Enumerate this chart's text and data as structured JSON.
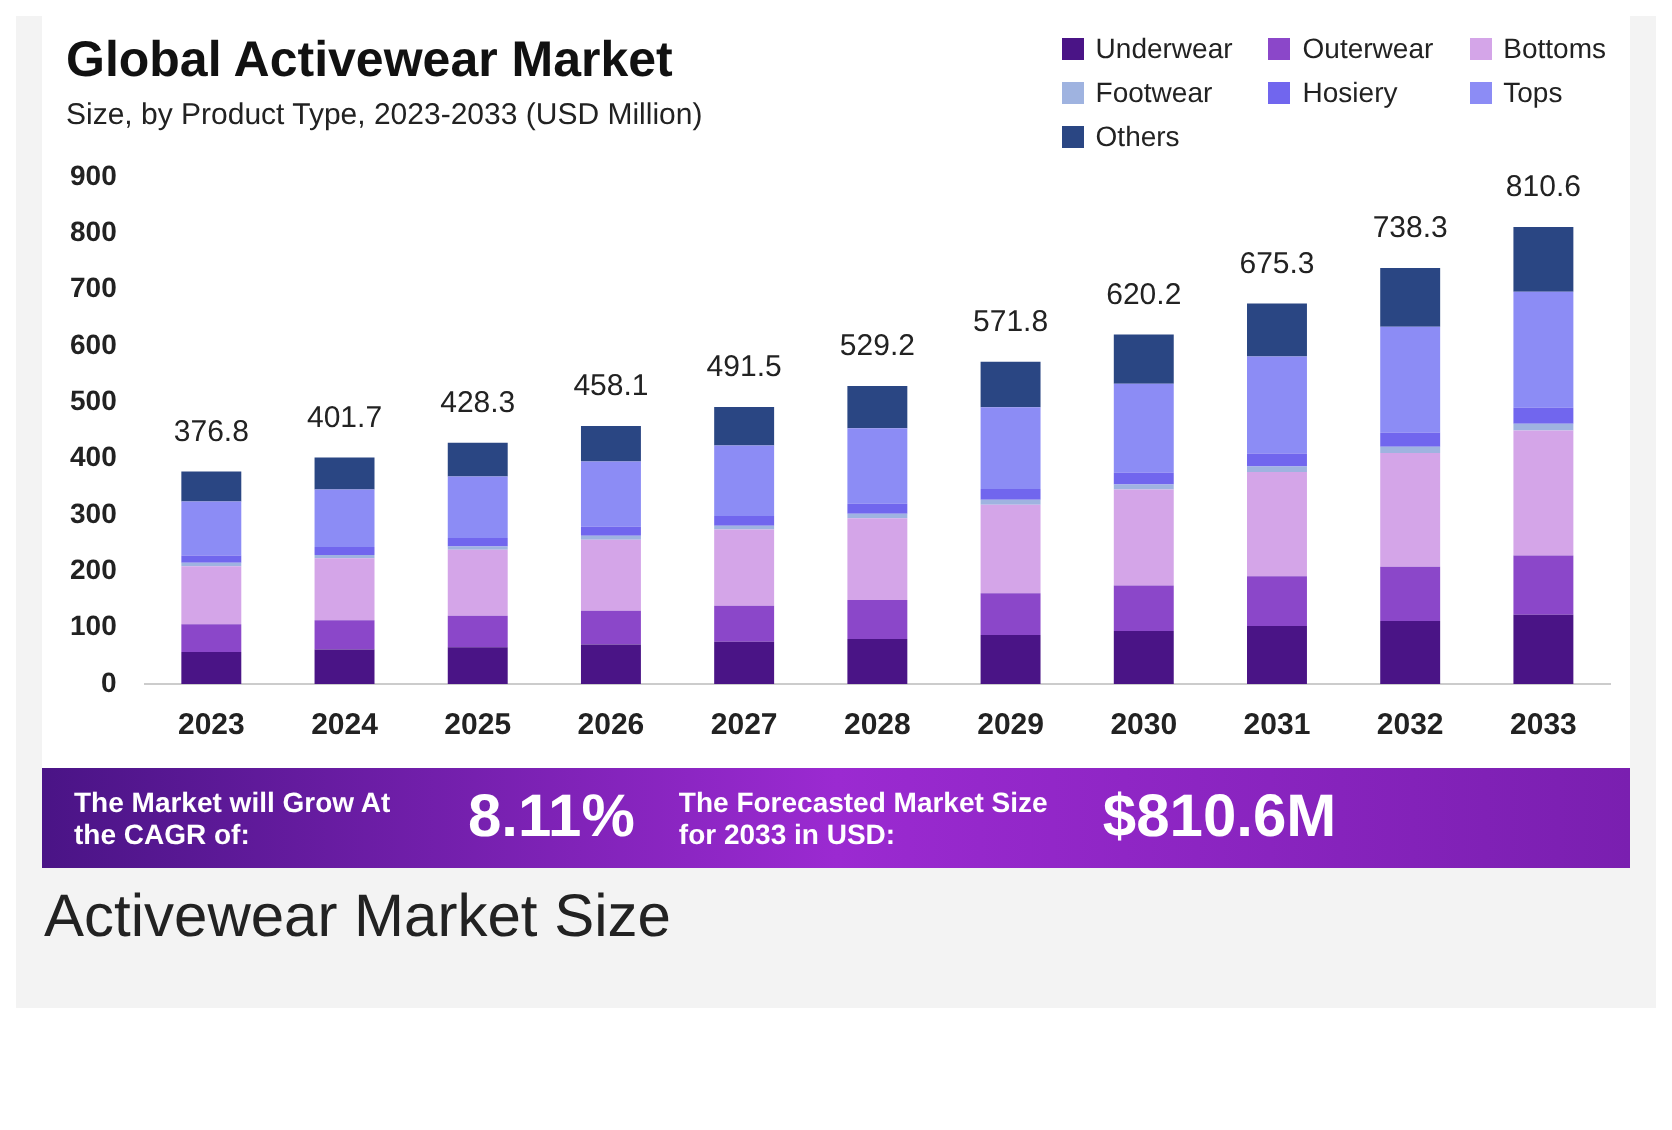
{
  "chart_data": {
    "type": "bar",
    "title": "Global Activewear Market",
    "subtitle": "Size, by Product Type, 2023-2033 (USD Million)",
    "categories": [
      "2023",
      "2024",
      "2025",
      "2026",
      "2027",
      "2028",
      "2029",
      "2030",
      "2031",
      "2032",
      "2033"
    ],
    "stacked": true,
    "grid": false,
    "legend": "top right",
    "ylim": [
      0,
      900
    ],
    "yticks": [
      0,
      100,
      200,
      300,
      400,
      500,
      600,
      700,
      800,
      900
    ],
    "series": [
      {
        "name": "Underwear",
        "color": "#4a1486",
        "values": [
          57,
          61,
          65,
          70,
          75,
          80,
          87,
          94,
          103,
          112,
          123
        ]
      },
      {
        "name": "Outerwear",
        "color": "#8b47c9",
        "values": [
          49,
          52,
          56,
          60,
          64,
          69,
          74,
          81,
          88,
          96,
          105
        ]
      },
      {
        "name": "Bottoms",
        "color": "#d4a5e8",
        "values": [
          103,
          110,
          117,
          126,
          135,
          145,
          157,
          170,
          185,
          202,
          222
        ]
      },
      {
        "name": "Footwear",
        "color": "#9fb3e0",
        "values": [
          6,
          6,
          6,
          7,
          7,
          8,
          9,
          9,
          10,
          11,
          12
        ]
      },
      {
        "name": "Hosiery",
        "color": "#7166ee",
        "values": [
          13,
          14,
          15,
          16,
          17,
          18,
          19,
          21,
          23,
          25,
          28
        ]
      },
      {
        "name": "Tops",
        "color": "#8c8cf5",
        "values": [
          96,
          102,
          109,
          116,
          125,
          134,
          145,
          158,
          172,
          188,
          206
        ]
      },
      {
        "name": "Others",
        "color": "#2a4683",
        "values": [
          53,
          57,
          60,
          63,
          68.5,
          75,
          81,
          87,
          94,
          104,
          115
        ]
      }
    ],
    "totals": [
      "376.8",
      "401.7",
      "428.3",
      "458.1",
      "491.5",
      "529.2",
      "571.8",
      "620.2",
      "675.3",
      "738.3",
      "810.6"
    ],
    "annotations": [
      "The Market will Grow At the CAGR of:",
      "8.11%",
      "The Forecasted Market Size for 2033 in USD:",
      "$810.6M",
      "Activewear Market Size"
    ]
  }
}
